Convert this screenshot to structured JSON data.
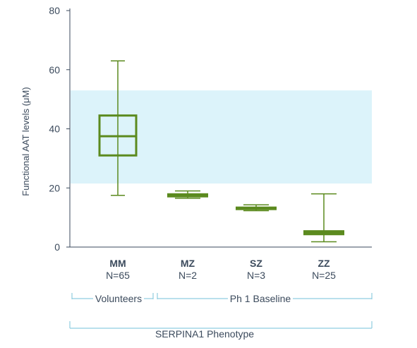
{
  "chart_data": {
    "type": "box",
    "ylabel": "Functional AAT levels (μM)",
    "ylim": [
      0,
      80
    ],
    "yticks": [
      0,
      20,
      40,
      60,
      80
    ],
    "reference_band": {
      "from": 21.5,
      "to": 53,
      "color": "#dcf3fa"
    },
    "box_color": "#5b8a1e",
    "groups": [
      {
        "category": "MM",
        "n_label": "N=65",
        "min": 17.5,
        "q1": 31,
        "median": 37.5,
        "q3": 44.5,
        "max": 63,
        "filled": false
      },
      {
        "category": "MZ",
        "n_label": "N=2",
        "min": 16.5,
        "q1": 16.8,
        "median": 17.5,
        "q3": 18.2,
        "max": 19,
        "filled": true
      },
      {
        "category": "SZ",
        "n_label": "N=3",
        "min": 12.3,
        "q1": 12.5,
        "median": 13,
        "q3": 13.7,
        "max": 14.3,
        "filled": true
      },
      {
        "category": "ZZ",
        "n_label": "N=25",
        "min": 1.8,
        "q1": 4,
        "median": 4.8,
        "q3": 5.7,
        "max": 18,
        "filled": true
      }
    ],
    "brackets": [
      {
        "label": "Volunteers",
        "categories": [
          "MM"
        ]
      },
      {
        "label": "Ph 1 Baseline",
        "categories": [
          "MZ",
          "SZ",
          "ZZ"
        ]
      },
      {
        "label": "SERPINA1 Phenotype",
        "categories": [
          "MM",
          "MZ",
          "SZ",
          "ZZ"
        ]
      }
    ],
    "bracket_color": "#8fcde0"
  }
}
